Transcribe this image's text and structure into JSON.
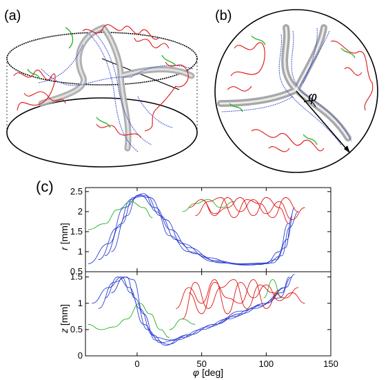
{
  "panels": {
    "a": "(a)",
    "b": "(b)",
    "c": "(c)"
  },
  "diagram_b": {
    "angle_symbol": "φ"
  },
  "colors": {
    "blue": "#2a3fd0",
    "red": "#e01010",
    "green": "#20b020",
    "ribbon": "#b8b8b8"
  },
  "chart_data": [
    {
      "type": "line",
      "xlabel_symbol": "φ",
      "xlabel_unit": "[deg]",
      "ylabel_symbol": "r",
      "ylabel_unit": "[mm]",
      "xlim": [
        -40,
        150
      ],
      "ylim": [
        0.5,
        2.6
      ],
      "xticks": [
        "0",
        "50",
        "100",
        "150"
      ],
      "yticks": [
        "0.5",
        "1",
        "1.5",
        "2",
        "2.5"
      ],
      "grid": false,
      "series": [
        {
          "color": "blue",
          "x": [
            -30,
            -15,
            -5,
            5,
            15,
            25,
            40,
            60,
            80,
            100,
            112,
            118,
            125
          ],
          "y": [
            0.8,
            1.6,
            2.3,
            2.45,
            2.0,
            1.4,
            1.0,
            0.75,
            0.68,
            0.7,
            0.9,
            1.6,
            2.0
          ]
        },
        {
          "color": "blue",
          "x": [
            -25,
            -12,
            -3,
            7,
            18,
            30,
            45,
            65,
            85,
            105,
            115,
            120
          ],
          "y": [
            0.9,
            1.7,
            2.35,
            2.4,
            1.9,
            1.3,
            0.95,
            0.72,
            0.66,
            0.72,
            1.1,
            1.9
          ]
        },
        {
          "color": "blue",
          "x": [
            -20,
            -8,
            0,
            10,
            22,
            35,
            55,
            75,
            95,
            108,
            116,
            122
          ],
          "y": [
            1.0,
            1.9,
            2.4,
            2.35,
            1.8,
            1.2,
            0.85,
            0.7,
            0.68,
            0.8,
            1.3,
            2.1
          ]
        },
        {
          "color": "blue",
          "x": [
            -38,
            -22,
            -10,
            2,
            14,
            26,
            40,
            60,
            80,
            100,
            110,
            117
          ],
          "y": [
            0.7,
            1.2,
            2.1,
            2.42,
            2.1,
            1.55,
            1.1,
            0.78,
            0.7,
            0.72,
            1.0,
            1.7
          ]
        },
        {
          "color": "green",
          "x": [
            -38,
            -25,
            -15,
            -5,
            5,
            12
          ],
          "y": [
            1.55,
            1.7,
            2.05,
            2.25,
            2.1,
            1.85
          ]
        },
        {
          "color": "green",
          "x": [
            35,
            45,
            55,
            65,
            75
          ],
          "y": [
            2.0,
            2.2,
            2.3,
            2.1,
            2.25
          ]
        },
        {
          "color": "red",
          "x": [
            40,
            50,
            60,
            70,
            80,
            90,
            100,
            110,
            120,
            130
          ],
          "y": [
            2.1,
            2.3,
            1.9,
            2.35,
            2.0,
            2.3,
            1.95,
            2.25,
            1.8,
            2.1
          ]
        },
        {
          "color": "red",
          "x": [
            45,
            55,
            65,
            75,
            85,
            95,
            105,
            115,
            125
          ],
          "y": [
            1.9,
            2.25,
            2.35,
            1.85,
            2.3,
            2.2,
            1.85,
            2.35,
            2.0
          ]
        },
        {
          "color": "red",
          "x": [
            50,
            60,
            70,
            80,
            90,
            100,
            110,
            118
          ],
          "y": [
            2.3,
            1.95,
            2.1,
            2.35,
            1.9,
            2.35,
            2.1,
            1.7
          ]
        }
      ]
    },
    {
      "type": "line",
      "xlabel_symbol": "φ",
      "xlabel_unit": "[deg]",
      "ylabel_symbol": "z",
      "ylabel_unit": "[mm]",
      "xlim": [
        -40,
        150
      ],
      "ylim": [
        0,
        1.6
      ],
      "xticks": [
        "0",
        "50",
        "100",
        "150"
      ],
      "yticks": [
        "0",
        "0.5",
        "1",
        "1.5"
      ],
      "grid": false,
      "series": [
        {
          "color": "blue",
          "x": [
            -35,
            -22,
            -12,
            -5,
            5,
            15,
            25,
            40,
            60,
            80,
            100,
            115,
            122
          ],
          "y": [
            1.0,
            1.3,
            1.5,
            1.2,
            0.6,
            0.35,
            0.3,
            0.4,
            0.6,
            0.8,
            1.0,
            1.3,
            1.55
          ]
        },
        {
          "color": "blue",
          "x": [
            -30,
            -18,
            -8,
            -2,
            8,
            18,
            30,
            50,
            70,
            90,
            110,
            120
          ],
          "y": [
            0.9,
            1.4,
            1.5,
            1.1,
            0.5,
            0.25,
            0.3,
            0.5,
            0.7,
            0.9,
            1.1,
            1.5
          ]
        },
        {
          "color": "blue",
          "x": [
            -25,
            -15,
            -6,
            2,
            12,
            22,
            35,
            55,
            75,
            95,
            112,
            118
          ],
          "y": [
            1.1,
            1.5,
            1.3,
            0.9,
            0.4,
            0.2,
            0.35,
            0.55,
            0.75,
            0.95,
            1.2,
            1.5
          ]
        },
        {
          "color": "blue",
          "x": [
            -20,
            -10,
            -3,
            5,
            14,
            24,
            40,
            60,
            80,
            100,
            114
          ],
          "y": [
            1.2,
            1.5,
            1.45,
            0.8,
            0.3,
            0.22,
            0.4,
            0.6,
            0.85,
            1.0,
            1.3
          ]
        },
        {
          "color": "green",
          "x": [
            -38,
            -28,
            -18,
            -8,
            2,
            10,
            18,
            25
          ],
          "y": [
            0.6,
            0.5,
            0.55,
            0.7,
            1.0,
            0.8,
            0.5,
            0.35
          ]
        },
        {
          "color": "green",
          "x": [
            25,
            35,
            45
          ],
          "y": [
            0.5,
            0.7,
            0.6
          ]
        },
        {
          "color": "green",
          "x": [
            98,
            105,
            112
          ],
          "y": [
            1.1,
            1.45,
            1.1
          ]
        },
        {
          "color": "red",
          "x": [
            30,
            40,
            50,
            60,
            70,
            80,
            90,
            100,
            110,
            120,
            130
          ],
          "y": [
            0.9,
            1.3,
            1.0,
            1.45,
            0.8,
            1.4,
            1.1,
            1.35,
            1.05,
            1.2,
            1.0
          ]
        },
        {
          "color": "red",
          "x": [
            35,
            45,
            55,
            65,
            75,
            85,
            95,
            105,
            115,
            125
          ],
          "y": [
            0.7,
            1.4,
            0.9,
            1.3,
            1.45,
            0.9,
            1.35,
            1.2,
            1.1,
            1.3
          ]
        },
        {
          "color": "red",
          "x": [
            40,
            50,
            60,
            70,
            80,
            90,
            100,
            110
          ],
          "y": [
            1.2,
            0.8,
            1.4,
            1.1,
            1.0,
            1.45,
            0.9,
            1.25
          ]
        }
      ]
    }
  ]
}
